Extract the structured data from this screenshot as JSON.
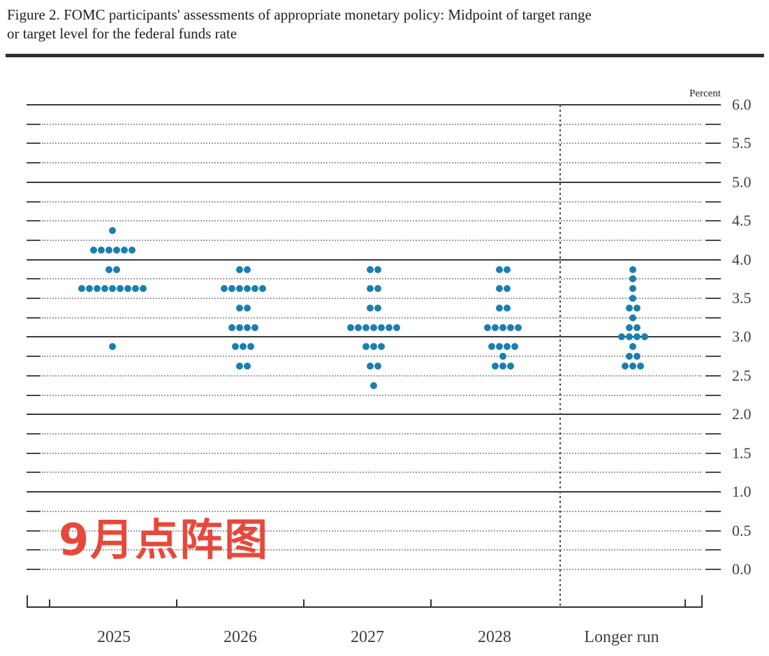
{
  "figure": {
    "title_line1": "Figure 2. FOMC participants' assessments of appropriate monetary policy: Midpoint of target range",
    "title_line2": "or target level for the federal funds rate"
  },
  "annotation": {
    "text": "9月点阵图",
    "color": "#e8483b"
  },
  "chart_data": {
    "type": "scatter",
    "subtype": "fomc-dot-plot",
    "unit_label": "Percent",
    "ylim": [
      0.0,
      6.0
    ],
    "y_label_step": 0.5,
    "grid_step": 0.25,
    "grid_style": "solid lines at whole percents, dotted lines at quarter percents, 0.0 dotted",
    "y_tick_labels": [
      "6.0",
      "5.5",
      "5.0",
      "4.5",
      "4.0",
      "3.5",
      "3.0",
      "2.5",
      "2.0",
      "1.5",
      "1.0",
      "0.5",
      "0.0"
    ],
    "categories": [
      "2025",
      "2026",
      "2027",
      "2028",
      "Longer run"
    ],
    "separator_before_category": "Longer run",
    "dot_color": "#1b7fae",
    "series": [
      {
        "category": "2025",
        "dots": [
          {
            "rate": 4.375,
            "count": 1
          },
          {
            "rate": 4.125,
            "count": 6
          },
          {
            "rate": 3.875,
            "count": 2
          },
          {
            "rate": 3.625,
            "count": 9
          },
          {
            "rate": 2.875,
            "count": 1
          }
        ]
      },
      {
        "category": "2026",
        "dots": [
          {
            "rate": 3.875,
            "count": 2
          },
          {
            "rate": 3.625,
            "count": 6
          },
          {
            "rate": 3.375,
            "count": 2
          },
          {
            "rate": 3.125,
            "count": 4
          },
          {
            "rate": 2.875,
            "count": 3
          },
          {
            "rate": 2.625,
            "count": 2
          }
        ]
      },
      {
        "category": "2027",
        "dots": [
          {
            "rate": 3.875,
            "count": 2
          },
          {
            "rate": 3.625,
            "count": 2
          },
          {
            "rate": 3.375,
            "count": 2
          },
          {
            "rate": 3.125,
            "count": 7
          },
          {
            "rate": 2.875,
            "count": 3
          },
          {
            "rate": 2.625,
            "count": 2
          },
          {
            "rate": 2.375,
            "count": 1
          }
        ]
      },
      {
        "category": "2028",
        "dots": [
          {
            "rate": 3.875,
            "count": 2
          },
          {
            "rate": 3.625,
            "count": 2
          },
          {
            "rate": 3.375,
            "count": 2
          },
          {
            "rate": 3.125,
            "count": 5
          },
          {
            "rate": 2.875,
            "count": 4
          },
          {
            "rate": 2.75,
            "count": 1
          },
          {
            "rate": 2.625,
            "count": 3
          }
        ]
      },
      {
        "category": "Longer run",
        "dots": [
          {
            "rate": 3.875,
            "count": 1
          },
          {
            "rate": 3.75,
            "count": 1
          },
          {
            "rate": 3.625,
            "count": 1
          },
          {
            "rate": 3.5,
            "count": 1
          },
          {
            "rate": 3.375,
            "count": 2
          },
          {
            "rate": 3.25,
            "count": 1
          },
          {
            "rate": 3.125,
            "count": 2
          },
          {
            "rate": 3.0,
            "count": 4
          },
          {
            "rate": 2.875,
            "count": 1
          },
          {
            "rate": 2.75,
            "count": 2
          },
          {
            "rate": 2.625,
            "count": 3
          }
        ]
      }
    ]
  }
}
